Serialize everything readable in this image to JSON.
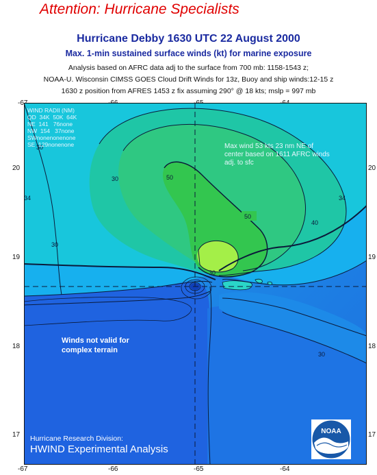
{
  "header": {
    "attention": "Attention:  Hurricane Specialists",
    "title": "Hurricane Debby 1630 UTC 22 August 2000",
    "subtitle": "Max. 1-min sustained surface winds (kt) for marine exposure",
    "info_lines": [
      "Analysis based on AFRC data adj to the surface from 700 mb: 1158-1543 z;",
      "NOAA-U. Wisconsin CIMSS GOES Cloud Drift Winds for 13z,  Buoy and ship winds:12-15 z",
      "1630 z position from AFRES  1453 z  fix assuming 290° @  18 kts; mslp = 997 mb"
    ]
  },
  "axes": {
    "lon_ticks": [
      "-67",
      "-66",
      "-65",
      "-64"
    ],
    "lat_ticks": [
      "20",
      "19",
      "18",
      "17"
    ],
    "lon_range": [
      -67.0,
      -63.0
    ],
    "lat_range": [
      16.75,
      20.85
    ]
  },
  "wind_radii": {
    "lines": [
      "WIND RADII (NM)",
      "QD  34K  50K  64K",
      "NE  141   76none",
      "NW  154   37none",
      "SWnonenonenone",
      "SE  129nonenone"
    ]
  },
  "annotations": {
    "max_wind": "Max wind 53 kts 23 nm NE of center based on 1611 AFRC winds adj. to sfc",
    "not_valid": "Winds not valid for complex terrain"
  },
  "contour_labels": [
    "30",
    "30",
    "30",
    "40",
    "50",
    "50",
    "30",
    "34",
    "34",
    "30"
  ],
  "storm_center": {
    "lon": -65.05,
    "lat": 18.68
  },
  "footer": {
    "division": "Hurricane Research Division:",
    "product": "HWIND Experimental Analysis",
    "logo_text": "NOAA"
  },
  "colors": {
    "sea_deep": "#1f63e0",
    "wind_20": "#1e8ae8",
    "wind_30": "#17b0ee",
    "wind_34": "#18d0d0",
    "wind_40": "#1fc69a",
    "wind_50": "#2fc955",
    "wind_53": "#a4ef48",
    "noaa_blue": "#1858a8"
  }
}
